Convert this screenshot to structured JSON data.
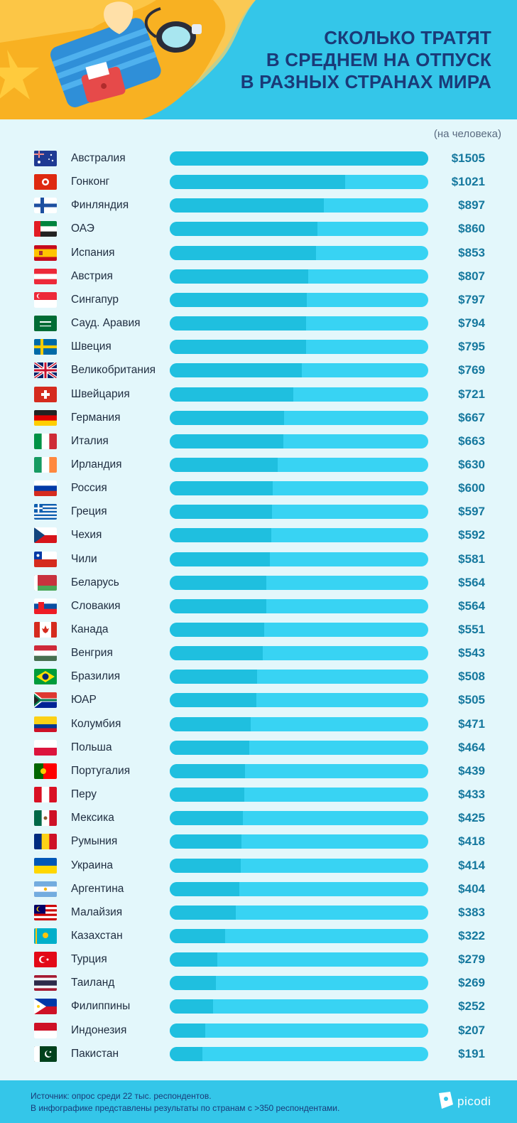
{
  "header": {
    "title_lines": [
      "СКОЛЬКО ТРАТЯТ",
      "В СРЕДНЕМ НА ОТПУСК",
      "В РАЗНЫХ СТРАНАХ МИРА"
    ]
  },
  "unit_note": "(на человека)",
  "chart_data": {
    "type": "bar",
    "orientation": "horizontal",
    "categories": [
      "Австралия",
      "Гонконг",
      "Финляндия",
      "ОАЭ",
      "Испания",
      "Австрия",
      "Сингапур",
      "Сауд. Аравия",
      "Швеция",
      "Великобритания",
      "Швейцария",
      "Германия",
      "Италия",
      "Ирландия",
      "Россия",
      "Греция",
      "Чехия",
      "Чили",
      "Беларусь",
      "Словакия",
      "Канада",
      "Венгрия",
      "Бразилия",
      "ЮАР",
      "Колумбия",
      "Польша",
      "Португалия",
      "Перу",
      "Мексика",
      "Румыния",
      "Украина",
      "Аргентина",
      "Малайзия",
      "Казахстан",
      "Турция",
      "Таиланд",
      "Филиппины",
      "Индонезия",
      "Пакистан"
    ],
    "values": [
      1505,
      1021,
      897,
      860,
      853,
      807,
      797,
      794,
      795,
      769,
      721,
      667,
      663,
      630,
      600,
      597,
      592,
      581,
      564,
      564,
      551,
      543,
      508,
      505,
      471,
      464,
      439,
      433,
      425,
      418,
      414,
      404,
      383,
      322,
      279,
      269,
      252,
      207,
      191
    ],
    "labels": [
      "$1505",
      "$1021",
      "$897",
      "$860",
      "$853",
      "$807",
      "$797",
      "$794",
      "$795",
      "$769",
      "$721",
      "$667",
      "$663",
      "$630",
      "$600",
      "$597",
      "$592",
      "$581",
      "$564",
      "$564",
      "$551",
      "$543",
      "$508",
      "$505",
      "$471",
      "$464",
      "$439",
      "$433",
      "$425",
      "$418",
      "$414",
      "$404",
      "$383",
      "$322",
      "$279",
      "$269",
      "$252",
      "$207",
      "$191"
    ],
    "flags": [
      "flag-australia-icon",
      "flag-hong-kong-icon",
      "flag-finland-icon",
      "flag-uae-icon",
      "flag-spain-icon",
      "flag-austria-icon",
      "flag-singapore-icon",
      "flag-saudi-arabia-icon",
      "flag-sweden-icon",
      "flag-uk-icon",
      "flag-switzerland-icon",
      "flag-germany-icon",
      "flag-italy-icon",
      "flag-ireland-icon",
      "flag-russia-icon",
      "flag-greece-icon",
      "flag-czechia-icon",
      "flag-chile-icon",
      "flag-belarus-icon",
      "flag-slovakia-icon",
      "flag-canada-icon",
      "flag-hungary-icon",
      "flag-brazil-icon",
      "flag-south-africa-icon",
      "flag-colombia-icon",
      "flag-poland-icon",
      "flag-portugal-icon",
      "flag-peru-icon",
      "flag-mexico-icon",
      "flag-romania-icon",
      "flag-ukraine-icon",
      "flag-argentina-icon",
      "flag-malaysia-icon",
      "flag-kazakhstan-icon",
      "flag-turkey-icon",
      "flag-thailand-icon",
      "flag-philippines-icon",
      "flag-indonesia-icon",
      "flag-pakistan-icon"
    ],
    "xlim": [
      0,
      1505
    ],
    "colors": {
      "bar_fill": "#1fbfdf",
      "bar_track": "#38d3f3",
      "value_text": "#15789e"
    },
    "grid": false,
    "legend": "none"
  },
  "footer": {
    "source_line1": "Источник: опрос среди 22 тыс. респондентов.",
    "source_line2": "В инфографике представлены результаты по странам с >350 респондентами.",
    "brand": "picodi"
  }
}
